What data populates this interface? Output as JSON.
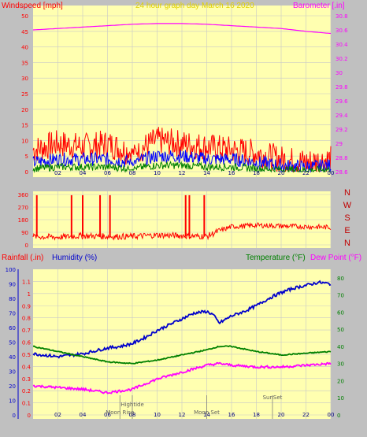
{
  "panel1": {
    "left_title": "Windspeed [mph]",
    "center_title": "24 hour graph day   March 16 2020",
    "right_title": "Barometer [.in]"
  },
  "panel3": {
    "rain_title": "Rainfall (.in)",
    "humidity_title": "Humidity (%)",
    "temp_title": "Temperature (°F)",
    "dew_title": "Dew Point (°F)"
  },
  "colors": {
    "plot_bg": "#ffffb0",
    "grid": "#c8c8c8",
    "wind_gust": "#ff0000",
    "wind_avg": "#0000ff",
    "wind_low": "#008000",
    "barometer": "#ff00ff",
    "direction": "#ff0000",
    "humidity": "#0000cc",
    "temperature": "#008000",
    "dewpoint": "#ff00ff",
    "compass": "#c00000"
  },
  "chart_data": [
    {
      "type": "line",
      "title": "24 hour graph day   March 16 2020",
      "xlabel": "",
      "x_ticks": [
        "02",
        "04",
        "06",
        "08",
        "10",
        "12",
        "14",
        "16",
        "18",
        "20",
        "22",
        "00"
      ],
      "y_left": {
        "label": "Windspeed [mph]",
        "ticks": [
          0,
          5,
          10,
          15,
          20,
          25,
          30,
          35,
          40,
          45,
          50
        ],
        "range": [
          0,
          50
        ]
      },
      "y_right": {
        "label": "Barometer [.in]",
        "ticks": [
          "28.6",
          "28.8",
          "29",
          "29.2",
          "29.4",
          "29.6",
          "29.8",
          "30",
          "30.2",
          "30.4",
          "30.6",
          "30.8"
        ],
        "range": [
          28.6,
          30.8
        ]
      },
      "series": [
        {
          "axis": "left",
          "hours": [
            0,
            2,
            4,
            6,
            8,
            9,
            10,
            12,
            14,
            16,
            18,
            20,
            22,
            24
          ],
          "values": [
            7,
            9,
            8,
            9,
            6,
            8,
            10,
            9,
            8,
            7,
            6,
            4,
            3,
            4
          ]
        },
        {
          "axis": "left",
          "hours": [
            0,
            2,
            4,
            6,
            8,
            9,
            10,
            12,
            14,
            16,
            18,
            20,
            22,
            24
          ],
          "values": [
            3,
            4,
            4,
            4,
            3,
            4,
            5,
            5,
            4,
            4,
            3,
            2,
            1.5,
            2
          ]
        },
        {
          "axis": "left",
          "hours": [
            0,
            2,
            4,
            6,
            8,
            9,
            10,
            12,
            14,
            16,
            18,
            20,
            22,
            24
          ],
          "values": [
            1,
            1.5,
            1.5,
            1.5,
            1,
            1.5,
            2,
            2,
            1.5,
            1.5,
            1,
            0.7,
            0.5,
            0.7
          ]
        },
        {
          "axis": "right",
          "hours": [
            0,
            2,
            4,
            6,
            8,
            10,
            12,
            14,
            16,
            18,
            20,
            22,
            24
          ],
          "values": [
            30.6,
            30.62,
            30.64,
            30.66,
            30.68,
            30.69,
            30.69,
            30.68,
            30.66,
            30.64,
            30.62,
            30.58,
            30.55
          ]
        }
      ]
    },
    {
      "type": "line",
      "y_left": {
        "ticks": [
          0,
          90,
          180,
          270,
          360
        ],
        "range": [
          0,
          360
        ]
      },
      "compass_labels": [
        "N",
        "W",
        "S",
        "E",
        "N"
      ],
      "x_ticks": [],
      "series": [
        {
          "hours": [
            0,
            2,
            4,
            6,
            8,
            10,
            12,
            14,
            15,
            16,
            18,
            20,
            22,
            24
          ],
          "values": [
            60,
            55,
            65,
            60,
            60,
            70,
            65,
            60,
            100,
            130,
            140,
            135,
            130,
            125
          ]
        }
      ],
      "spikes_hours": [
        0.3,
        3.1,
        4.0,
        5.4,
        6.2,
        12.3,
        12.6,
        13.8
      ]
    },
    {
      "type": "line",
      "x_ticks": [
        "02",
        "04",
        "06",
        "08",
        "10",
        "12",
        "14",
        "16",
        "18",
        "20",
        "22",
        "00"
      ],
      "y_left_rain": {
        "label": "Rainfall (.in)",
        "ticks": [
          "0",
          "0.1",
          "0.2",
          "0.3",
          "0.4",
          "0.5",
          "0.6",
          "0.7",
          "0.8",
          "0.9",
          "1",
          "1.1"
        ],
        "range": [
          0,
          1.2
        ]
      },
      "y_left_humidity": {
        "label": "Humidity (%)",
        "ticks": [
          0,
          10,
          20,
          30,
          40,
          50,
          60,
          70,
          80,
          90,
          100
        ],
        "range": [
          0,
          100
        ]
      },
      "y_right": {
        "label": "Temperature (°F)",
        "ticks": [
          0,
          10,
          20,
          30,
          40,
          50,
          60,
          70,
          80
        ],
        "range": [
          0,
          85
        ]
      },
      "series": [
        {
          "name": "Humidity (%)",
          "axis": "humidity",
          "hours": [
            0,
            1,
            2,
            3,
            4,
            5,
            6,
            7,
            8,
            9,
            10,
            11,
            12,
            13,
            14,
            14.5,
            15,
            16,
            17,
            18,
            19,
            20,
            21,
            22,
            23,
            24
          ],
          "values": [
            42,
            41,
            40,
            41,
            42,
            44,
            46,
            47,
            49,
            53,
            58,
            62,
            66,
            70,
            71,
            69,
            63,
            68,
            71,
            75,
            80,
            84,
            87,
            89,
            91,
            90
          ]
        },
        {
          "name": "Temperature (°F)",
          "axis": "temp",
          "hours": [
            0,
            2,
            4,
            6,
            8,
            10,
            12,
            14,
            15,
            16,
            18,
            20,
            22,
            24
          ],
          "values": [
            40,
            37,
            34,
            31,
            30,
            32,
            35,
            38,
            40,
            40,
            37,
            35,
            36,
            37
          ]
        },
        {
          "name": "Dew Point (°F)",
          "axis": "temp",
          "hours": [
            0,
            2,
            4,
            6,
            8,
            10,
            12,
            14,
            15,
            16,
            18,
            20,
            22,
            24
          ],
          "values": [
            17,
            16,
            15,
            13,
            15,
            21,
            25,
            29,
            30,
            29,
            28,
            28,
            29,
            30
          ]
        }
      ],
      "events": [
        {
          "label": "Moon Rise",
          "hour": 7.0
        },
        {
          "label": "Hightide",
          "hour": 8.0
        },
        {
          "label": "Moon Set",
          "hour": 14.0
        },
        {
          "label": "SunSet",
          "hour": 19.3
        }
      ]
    }
  ]
}
